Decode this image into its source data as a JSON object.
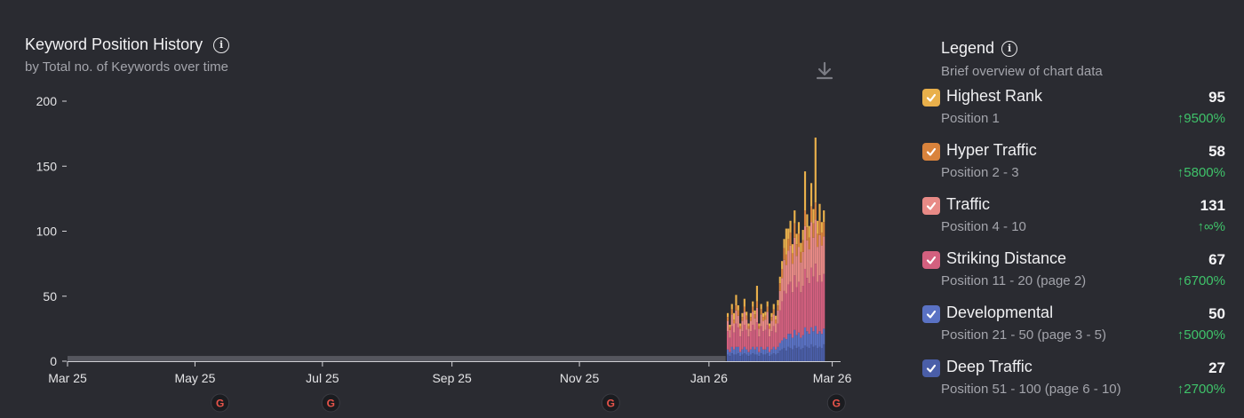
{
  "header": {
    "title": "Keyword Position History",
    "subtitle": "by Total no. of Keywords over time"
  },
  "legend": {
    "title": "Legend",
    "subtitle": "Brief overview of chart data",
    "items": [
      {
        "name": "Highest Rank",
        "range": "Position 1",
        "value": "95",
        "change": "↑9500%",
        "color": "#e9b04b"
      },
      {
        "name": "Hyper Traffic",
        "range": "Position 2 - 3",
        "value": "58",
        "change": "↑5800%",
        "color": "#d9833c"
      },
      {
        "name": "Traffic",
        "range": "Position 4 - 10",
        "value": "131",
        "change": "↑∞%",
        "color": "#e88a86"
      },
      {
        "name": "Striking Distance",
        "range": "Position 11 - 20 (page 2)",
        "value": "67",
        "change": "↑6700%",
        "color": "#d3607f"
      },
      {
        "name": "Developmental",
        "range": "Position 21 - 50 (page 3 - 5)",
        "value": "50",
        "change": "↑5000%",
        "color": "#5a72c4"
      },
      {
        "name": "Deep Traffic",
        "range": "Position 51 - 100 (page 6 - 10)",
        "value": "27",
        "change": "↑2700%",
        "color": "#4a5ea8"
      }
    ]
  },
  "chart_data": {
    "type": "bar",
    "stacked": true,
    "title": "Keyword Position History",
    "subtitle": "by Total no. of Keywords over time",
    "ylim": [
      0,
      200
    ],
    "yticks": [
      0,
      50,
      100,
      150,
      200
    ],
    "x_range": [
      "2025-03-25",
      "2026-03-30"
    ],
    "xticks": [
      {
        "date": "2025-03-25",
        "label": "Mar 25"
      },
      {
        "date": "2025-05-25",
        "label": "May 25"
      },
      {
        "date": "2025-07-25",
        "label": "Jul 25"
      },
      {
        "date": "2025-09-25",
        "label": "Sep 25"
      },
      {
        "date": "2025-11-25",
        "label": "Nov 25"
      },
      {
        "date": "2026-01-26",
        "label": "Jan 26"
      },
      {
        "date": "2026-03-26",
        "label": "Mar 26"
      }
    ],
    "baseline_period": [
      "2025-03-25",
      "2026-02-03"
    ],
    "baseline_value": 2,
    "start_date": "2026-02-04",
    "series": [
      {
        "name": "Deep Traffic",
        "color": "#4a5ea8",
        "values": [
          5,
          4,
          6,
          5,
          5,
          6,
          4,
          5,
          6,
          5,
          4,
          5,
          6,
          5,
          5,
          4,
          6,
          5,
          5,
          6,
          4,
          5,
          6,
          5,
          6,
          8,
          9,
          10,
          8,
          11,
          10,
          9,
          12,
          10,
          11,
          9,
          10,
          12,
          11,
          10,
          13,
          11,
          12,
          10,
          11,
          10,
          13
        ]
      },
      {
        "name": "Developmental",
        "color": "#5a72c4",
        "values": [
          4,
          3,
          5,
          4,
          6,
          5,
          3,
          4,
          5,
          4,
          3,
          4,
          5,
          4,
          6,
          3,
          5,
          4,
          4,
          5,
          3,
          4,
          5,
          4,
          5,
          6,
          7,
          8,
          9,
          10,
          11,
          9,
          12,
          10,
          11,
          9,
          10,
          14,
          12,
          11,
          13,
          12,
          15,
          11,
          12,
          11,
          12
        ]
      },
      {
        "name": "Striking Distance",
        "color": "#d3607f",
        "values": [
          14,
          11,
          16,
          13,
          18,
          15,
          12,
          14,
          17,
          15,
          12,
          14,
          17,
          15,
          19,
          12,
          16,
          14,
          15,
          17,
          12,
          14,
          16,
          13,
          18,
          25,
          30,
          36,
          35,
          38,
          40,
          35,
          42,
          37,
          39,
          35,
          38,
          45,
          41,
          39,
          46,
          42,
          48,
          40,
          43,
          40,
          42
        ]
      },
      {
        "name": "Traffic",
        "color": "#e88a86",
        "values": [
          8,
          6,
          9,
          7,
          10,
          9,
          6,
          8,
          10,
          8,
          6,
          8,
          10,
          9,
          11,
          6,
          9,
          8,
          8,
          10,
          6,
          8,
          9,
          7,
          10,
          15,
          18,
          24,
          22,
          26,
          28,
          22,
          29,
          24,
          27,
          23,
          26,
          33,
          29,
          26,
          35,
          30,
          34,
          27,
          31,
          28,
          29
        ]
      },
      {
        "name": "Hyper Traffic",
        "color": "#d9833c",
        "values": [
          3,
          2,
          4,
          3,
          4,
          4,
          2,
          3,
          4,
          3,
          2,
          3,
          4,
          3,
          5,
          2,
          4,
          3,
          3,
          4,
          2,
          3,
          4,
          3,
          4,
          6,
          7,
          9,
          8,
          9,
          10,
          8,
          11,
          9,
          10,
          8,
          9,
          12,
          10,
          9,
          12,
          11,
          13,
          10,
          11,
          10,
          11
        ]
      },
      {
        "name": "Highest Rank",
        "color": "#e9b04b",
        "values": [
          3,
          2,
          4,
          5,
          8,
          4,
          2,
          3,
          6,
          3,
          2,
          3,
          4,
          3,
          12,
          2,
          4,
          3,
          3,
          4,
          2,
          3,
          4,
          3,
          4,
          5,
          6,
          7,
          20,
          8,
          9,
          7,
          10,
          8,
          9,
          7,
          8,
          30,
          10,
          9,
          18,
          11,
          50,
          10,
          13,
          8,
          9
        ]
      }
    ]
  },
  "markers": [
    {
      "date": "2025-06-06",
      "icon": "google-update-icon",
      "label": "G"
    },
    {
      "date": "2025-07-29",
      "icon": "google-update-icon",
      "label": "G"
    },
    {
      "date": "2025-12-10",
      "icon": "google-update-icon",
      "label": "G"
    },
    {
      "date": "2026-03-28",
      "icon": "google-update-icon",
      "label": "G"
    }
  ]
}
